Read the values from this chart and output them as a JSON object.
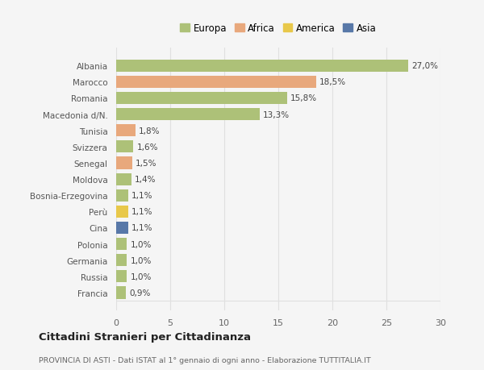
{
  "categories": [
    "Albania",
    "Marocco",
    "Romania",
    "Macedonia d/N.",
    "Tunisia",
    "Svizzera",
    "Senegal",
    "Moldova",
    "Bosnia-Erzegovina",
    "Perù",
    "Cina",
    "Polonia",
    "Germania",
    "Russia",
    "Francia"
  ],
  "values": [
    27.0,
    18.5,
    15.8,
    13.3,
    1.8,
    1.6,
    1.5,
    1.4,
    1.1,
    1.1,
    1.1,
    1.0,
    1.0,
    1.0,
    0.9
  ],
  "labels": [
    "27,0%",
    "18,5%",
    "15,8%",
    "13,3%",
    "1,8%",
    "1,6%",
    "1,5%",
    "1,4%",
    "1,1%",
    "1,1%",
    "1,1%",
    "1,0%",
    "1,0%",
    "1,0%",
    "0,9%"
  ],
  "colors": [
    "#adc178",
    "#e8a87c",
    "#adc178",
    "#adc178",
    "#e8a87c",
    "#adc178",
    "#e8a87c",
    "#adc178",
    "#adc178",
    "#e8c84a",
    "#5878a8",
    "#adc178",
    "#adc178",
    "#adc178",
    "#adc178"
  ],
  "legend": [
    {
      "label": "Europa",
      "color": "#adc178"
    },
    {
      "label": "Africa",
      "color": "#e8a87c"
    },
    {
      "label": "America",
      "color": "#e8c84a"
    },
    {
      "label": "Asia",
      "color": "#5878a8"
    }
  ],
  "title": "Cittadini Stranieri per Cittadinanza",
  "subtitle": "PROVINCIA DI ASTI - Dati ISTAT al 1° gennaio di ogni anno - Elaborazione TUTTITALIA.IT",
  "xlim": [
    0,
    30
  ],
  "xticks": [
    0,
    5,
    10,
    15,
    20,
    25,
    30
  ],
  "bg_color": "#f5f5f5",
  "grid_color": "#e0e0e0"
}
